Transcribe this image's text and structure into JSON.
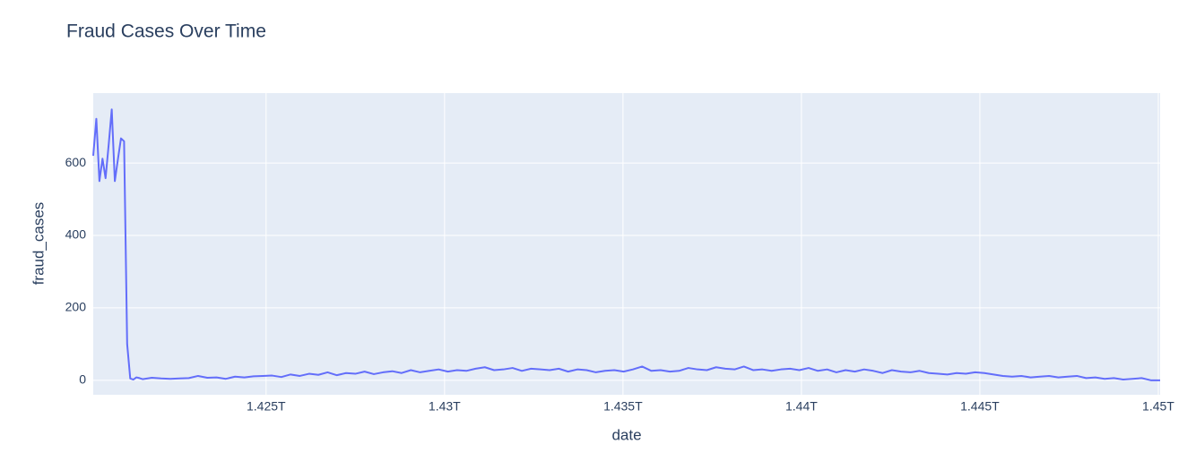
{
  "chart_data": {
    "type": "line",
    "title": "Fraud Cases Over Time",
    "xlabel": "date",
    "ylabel": "fraud_cases",
    "x": [
      1420156800000,
      1420243200000,
      1420329600000,
      1420416000000,
      1420502400000,
      1420588800000,
      1420675200000,
      1420761600000,
      1420848000000,
      1420934400000,
      1421020800000,
      1421107200000,
      1421193600000,
      1421280000000,
      1421366400000,
      1421452800000,
      1421539200000,
      1421798400000,
      1422057600000,
      1422316800000,
      1422576000000,
      1422835200000,
      1423094400000,
      1423353600000,
      1423612800000,
      1423872000000,
      1424131200000,
      1424390400000,
      1424649600000,
      1424908800000,
      1425168000000,
      1425427200000,
      1425686400000,
      1425945600000,
      1426204800000,
      1426464000000,
      1426723200000,
      1426982400000,
      1427241600000,
      1427500800000,
      1427760000000,
      1428019200000,
      1428278400000,
      1428537600000,
      1428796800000,
      1429056000000,
      1429315200000,
      1429574400000,
      1429833600000,
      1430092800000,
      1430352000000,
      1430611200000,
      1430870400000,
      1431129600000,
      1431388800000,
      1431648000000,
      1431907200000,
      1432166400000,
      1432425600000,
      1432684800000,
      1432944000000,
      1433203200000,
      1433462400000,
      1433721600000,
      1433980800000,
      1434240000000,
      1434499200000,
      1434758400000,
      1435017600000,
      1435276800000,
      1435536000000,
      1435795200000,
      1436054400000,
      1436313600000,
      1436572800000,
      1436832000000,
      1437091200000,
      1437350400000,
      1437609600000,
      1437868800000,
      1438128000000,
      1438387200000,
      1438646400000,
      1438905600000,
      1439164800000,
      1439424000000,
      1439683200000,
      1439942400000,
      1440201600000,
      1440460800000,
      1440720000000,
      1440979200000,
      1441238400000,
      1441497600000,
      1441756800000,
      1442016000000,
      1442275200000,
      1442534400000,
      1442793600000,
      1443052800000,
      1443312000000,
      1443571200000,
      1443830400000,
      1444089600000,
      1444348800000,
      1444608000000,
      1444867200000,
      1445126400000,
      1445385600000,
      1445644800000,
      1445904000000,
      1446163200000,
      1446422400000,
      1446681600000,
      1446940800000,
      1447200000000,
      1447459200000,
      1447718400000,
      1447977600000,
      1448236800000,
      1448496000000,
      1448755200000,
      1449014400000,
      1449273600000,
      1449532800000,
      1449792000000,
      1450051200000
    ],
    "series": [
      {
        "name": "fraud_cases",
        "color": "#636efa",
        "values": [
          620,
          722,
          550,
          612,
          558,
          650,
          748,
          550,
          610,
          668,
          660,
          100,
          5,
          2,
          8,
          6,
          3,
          7,
          5,
          4,
          5,
          6,
          12,
          7,
          8,
          4,
          10,
          8,
          11,
          12,
          13,
          9,
          16,
          12,
          18,
          15,
          22,
          14,
          20,
          18,
          24,
          17,
          22,
          25,
          20,
          28,
          22,
          26,
          30,
          24,
          28,
          26,
          32,
          36,
          28,
          30,
          34,
          26,
          32,
          30,
          28,
          32,
          24,
          30,
          28,
          22,
          26,
          28,
          24,
          30,
          38,
          26,
          28,
          24,
          26,
          34,
          30,
          28,
          36,
          32,
          30,
          38,
          28,
          30,
          26,
          30,
          32,
          28,
          34,
          26,
          30,
          22,
          28,
          24,
          30,
          26,
          20,
          28,
          24,
          22,
          26,
          20,
          18,
          16,
          20,
          18,
          22,
          20,
          16,
          12,
          10,
          12,
          8,
          10,
          12,
          8,
          10,
          12,
          6,
          8,
          4,
          6,
          2,
          4,
          6,
          0,
          0
        ]
      }
    ],
    "xlim": [
      1420156800000,
      1450051200000
    ],
    "xticks": [
      {
        "value": 1425000000000,
        "label": "1.425T"
      },
      {
        "value": 1430000000000,
        "label": "1.43T"
      },
      {
        "value": 1435000000000,
        "label": "1.435T"
      },
      {
        "value": 1440000000000,
        "label": "1.44T"
      },
      {
        "value": 1445000000000,
        "label": "1.445T"
      },
      {
        "value": 1450000000000,
        "label": "1.45T"
      }
    ],
    "ylim": [
      -40,
      793
    ],
    "yticks": [
      0,
      200,
      400,
      600
    ],
    "grid": true
  }
}
